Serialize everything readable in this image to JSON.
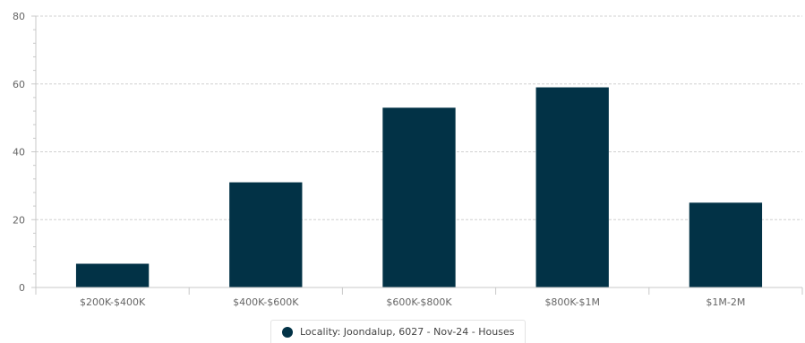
{
  "colors": {
    "bar": "#023246",
    "grid": "#d0d0d0",
    "axis": "#c8c8c8",
    "tick_text": "#666666"
  },
  "chart_data": {
    "type": "bar",
    "categories": [
      "$200K-$400K",
      "$400K-$600K",
      "$600K-$800K",
      "$800K-$1M",
      "$1M-2M"
    ],
    "series": [
      {
        "name": "Locality: Joondalup, 6027 - Nov-24 - Houses",
        "values": [
          7,
          31,
          53,
          59,
          25
        ]
      }
    ],
    "yticks": [
      "0",
      "20",
      "40",
      "60",
      "80"
    ],
    "ylim": [
      0,
      80
    ],
    "grid": true,
    "legend_position": "bottom-center"
  }
}
